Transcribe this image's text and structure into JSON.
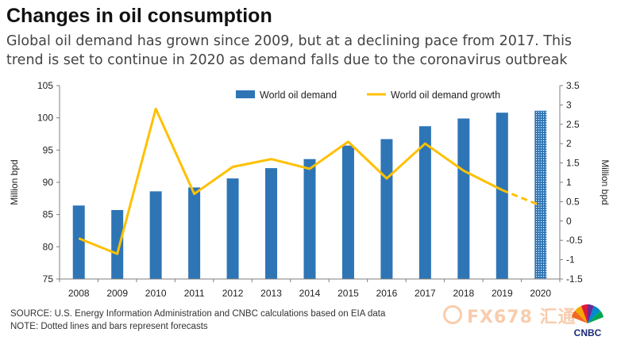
{
  "title": "Changes in oil consumption",
  "subtitle": "Global oil demand has grown since 2009, but at a declining pace from 2017. This trend is set to continue in 2020 as demand falls due to the coronavirus outbreak",
  "source_lines": [
    "SOURCE: U.S. Energy Information Administration and CNBC calculations based on EIA data",
    "NOTE: Dotted lines and bars represent forecasts"
  ],
  "watermark": "FX678 汇通",
  "logo_text": "CNBC",
  "colors": {
    "bar": "#2e75b6",
    "line": "#ffc000",
    "axis": "#7f7f7f",
    "grid": "#d9d9d9"
  },
  "chart_data": {
    "type": "bar",
    "categories": [
      "2008",
      "2009",
      "2010",
      "2011",
      "2012",
      "2013",
      "2014",
      "2015",
      "2016",
      "2017",
      "2018",
      "2019",
      "2020"
    ],
    "series": [
      {
        "name": "World oil demand",
        "type": "bar",
        "axis": "left",
        "values": [
          86.4,
          85.7,
          88.6,
          89.2,
          90.6,
          92.2,
          93.6,
          95.7,
          96.7,
          98.7,
          99.9,
          100.8,
          101.1
        ],
        "forecast_from_index": 12
      },
      {
        "name": "World oil demand growth",
        "type": "line",
        "axis": "right",
        "values": [
          -0.45,
          -0.85,
          2.9,
          0.7,
          1.4,
          1.6,
          1.35,
          2.05,
          1.1,
          2.0,
          1.3,
          0.8,
          0.4
        ],
        "forecast_from_index": 11
      }
    ],
    "ylabel": "Million bpd",
    "y2label": "Million bpd",
    "ylim": [
      75,
      105
    ],
    "yticks": [
      "75",
      "80",
      "85",
      "90",
      "95",
      "100",
      "105"
    ],
    "y2lim": [
      -1.5,
      3.5
    ],
    "y2ticks": [
      "-1.5",
      "-1",
      "-0.5",
      "0",
      "0.5",
      "1",
      "1.5",
      "2",
      "2.5",
      "3",
      "3.5"
    ],
    "legend": [
      "World oil demand",
      "World oil demand growth"
    ],
    "legend_position": "top-center",
    "grid": false
  }
}
